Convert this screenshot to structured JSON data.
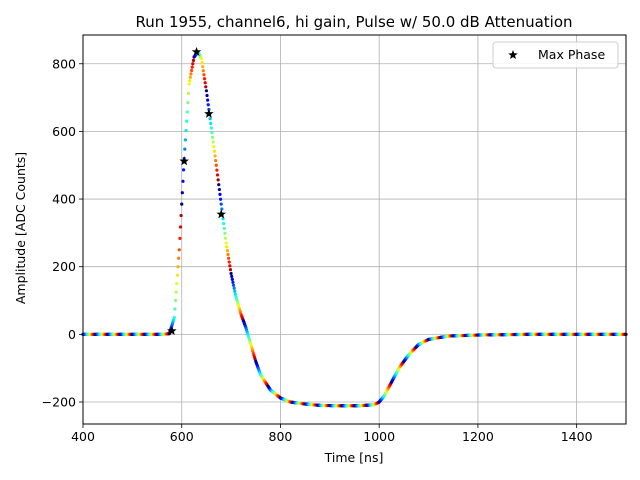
{
  "chart_data": {
    "type": "scatter",
    "title": "Run 1955, channel6, hi gain, Pulse w/ 50.0 dB Attenuation",
    "xlabel": "Time [ns]",
    "ylabel": "Amplitude [ADC Counts]",
    "xlim": [
      400,
      1500
    ],
    "ylim": [
      -265,
      885
    ],
    "xticks": [
      400,
      600,
      800,
      1000,
      1200,
      1400
    ],
    "yticks": [
      -200,
      0,
      200,
      400,
      600,
      800
    ],
    "grid": true,
    "legend_position": "top-right",
    "colormap": "jet",
    "series": [
      {
        "name": "Max Phase",
        "marker": "star",
        "color": "#000000",
        "x": [
          580,
          605,
          630,
          655,
          680
        ],
        "y": [
          10,
          512,
          835,
          652,
          355
        ]
      }
    ],
    "waveform_keypoints": {
      "x": [
        400,
        560,
        575,
        585,
        595,
        605,
        615,
        625,
        633,
        640,
        650,
        660,
        670,
        680,
        690,
        700,
        710,
        720,
        730,
        740,
        750,
        760,
        780,
        800,
        820,
        850,
        880,
        920,
        960,
        990,
        1000,
        1010,
        1020,
        1040,
        1060,
        1080,
        1100,
        1140,
        1200,
        1300,
        1500
      ],
      "y": [
        0,
        0,
        2,
        50,
        250,
        520,
        740,
        820,
        835,
        815,
        720,
        610,
        500,
        385,
        270,
        180,
        110,
        60,
        20,
        -30,
        -80,
        -120,
        -165,
        -188,
        -200,
        -206,
        -210,
        -211,
        -211,
        -208,
        -200,
        -182,
        -155,
        -100,
        -60,
        -30,
        -15,
        -5,
        -2,
        0,
        0
      ]
    }
  }
}
